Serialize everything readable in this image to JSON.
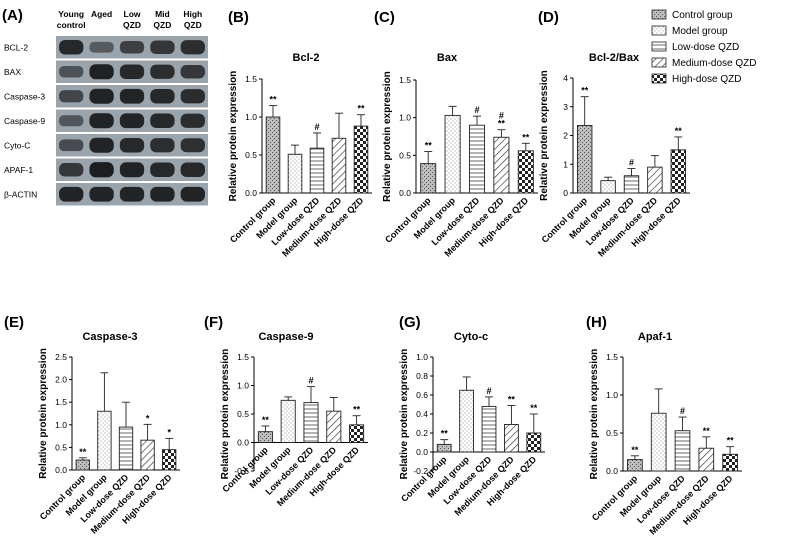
{
  "western_blot": {
    "panel_label": "(A)",
    "lanes": [
      "Young\ncontrol",
      "Aged",
      "Low\nQZD",
      "Mid\nQZD",
      "High\nQZD"
    ],
    "proteins": [
      "BCL-2",
      "BAX",
      "Caspase-3",
      "Caspase-9",
      "Cyto-C",
      "APAF-1",
      "β-ACTIN"
    ],
    "band_intensity": [
      [
        0.85,
        0.35,
        0.6,
        0.72,
        0.8
      ],
      [
        0.45,
        0.92,
        0.85,
        0.8,
        0.7
      ],
      [
        0.55,
        0.9,
        0.88,
        0.85,
        0.82
      ],
      [
        0.4,
        0.9,
        0.88,
        0.85,
        0.82
      ],
      [
        0.5,
        0.9,
        0.85,
        0.8,
        0.78
      ],
      [
        0.7,
        0.95,
        0.9,
        0.85,
        0.85
      ],
      [
        0.88,
        0.88,
        0.88,
        0.88,
        0.88
      ]
    ]
  },
  "legend": {
    "entries": [
      "Control group",
      "Model group",
      "Low-dose QZD",
      "Medium-dose QZD",
      "High-dose QZD"
    ]
  },
  "chart_data": [
    {
      "panel": "(B)",
      "type": "bar",
      "title": "Bcl-2",
      "ylabel": "Relative protein expression",
      "categories": [
        "Control group",
        "Model group",
        "Low-dose QZD",
        "Medium-dose QZD",
        "High-dose QZD"
      ],
      "values": [
        1.0,
        0.51,
        0.59,
        0.72,
        0.88
      ],
      "errors": [
        0.15,
        0.12,
        0.2,
        0.33,
        0.15
      ],
      "significance": [
        "**",
        "",
        "#",
        "",
        "**"
      ],
      "ylim": [
        0,
        1.5
      ],
      "yticks": [
        "0.0",
        "0.5",
        "1.0",
        "1.5"
      ]
    },
    {
      "panel": "(C)",
      "type": "bar",
      "title": "Bax",
      "ylabel": "Relative protein expression",
      "categories": [
        "Control group",
        "Model group",
        "Low-dose QZD",
        "Medium-dose QZD",
        "High-dose QZD"
      ],
      "values": [
        0.39,
        1.03,
        0.9,
        0.74,
        0.56
      ],
      "errors": [
        0.16,
        0.12,
        0.12,
        0.1,
        0.1
      ],
      "significance": [
        "**",
        "",
        "#",
        "#\n**",
        "**"
      ],
      "ylim": [
        0,
        1.5
      ],
      "yticks": [
        "0.0",
        "0.5",
        "1.0",
        "1.5"
      ]
    },
    {
      "panel": "(D)",
      "type": "bar",
      "title": "Bcl-2/Bax",
      "ylabel": "Relative protein expression",
      "categories": [
        "Control group",
        "Model group",
        "Low-dose QZD",
        "Medium-dose QZD",
        "High-dose QZD"
      ],
      "values": [
        2.35,
        0.43,
        0.6,
        0.9,
        1.5
      ],
      "errors": [
        1.0,
        0.12,
        0.25,
        0.4,
        0.45
      ],
      "significance": [
        "**",
        "",
        "#",
        "",
        "**"
      ],
      "ylim": [
        0,
        4
      ],
      "yticks": [
        "0",
        "1",
        "2",
        "3",
        "4"
      ]
    },
    {
      "panel": "(E)",
      "type": "bar",
      "title": "Caspase-3",
      "ylabel": "Relative protein expression",
      "categories": [
        "Control group",
        "Model group",
        "Low-dose QZD",
        "Medium-dose QZD",
        "High-dose QZD"
      ],
      "values": [
        0.22,
        1.3,
        0.95,
        0.66,
        0.45
      ],
      "errors": [
        0.05,
        0.85,
        0.55,
        0.35,
        0.25
      ],
      "significance": [
        "**",
        "",
        "",
        "*",
        "*"
      ],
      "ylim": [
        0,
        2.5
      ],
      "yticks": [
        "0.0",
        "0.5",
        "1.0",
        "1.5",
        "2.0",
        "2.5"
      ]
    },
    {
      "panel": "(F)",
      "type": "bar",
      "title": "Caspase-9",
      "ylabel": "Relative protein expression",
      "categories": [
        "Control group",
        "Model group",
        "Low-dose QZD",
        "Medium-dose QZD",
        "High-dose QZD"
      ],
      "values": [
        0.19,
        0.74,
        0.7,
        0.55,
        0.31
      ],
      "errors": [
        0.1,
        0.06,
        0.28,
        0.24,
        0.16
      ],
      "significance": [
        "**",
        "",
        "#",
        "",
        "**"
      ],
      "ylim": [
        -0.5,
        1.5
      ],
      "yticks": [
        "-0.5",
        "0.0",
        "0.5",
        "1.0",
        "1.5"
      ]
    },
    {
      "panel": "(G)",
      "type": "bar",
      "title": "Cyto-c",
      "ylabel": "Relative protein expression",
      "categories": [
        "Control group",
        "Model group",
        "Low-dose QZD",
        "Medium-dose QZD",
        "High-dose QZD"
      ],
      "values": [
        0.08,
        0.65,
        0.48,
        0.29,
        0.2
      ],
      "errors": [
        0.05,
        0.14,
        0.1,
        0.2,
        0.2
      ],
      "significance": [
        "**",
        "",
        "#",
        "**",
        "**"
      ],
      "ylim": [
        -0.2,
        1.0
      ],
      "yticks": [
        "-0.2",
        "0.0",
        "0.2",
        "0.4",
        "0.6",
        "0.8",
        "1.0"
      ]
    },
    {
      "panel": "(H)",
      "type": "bar",
      "title": "Apaf-1",
      "ylabel": "Relative protein expression",
      "categories": [
        "Control group",
        "Model group",
        "Low-dose QZD",
        "Medium-dose QZD",
        "High-dose QZD"
      ],
      "values": [
        0.15,
        0.76,
        0.53,
        0.3,
        0.22
      ],
      "errors": [
        0.05,
        0.32,
        0.18,
        0.15,
        0.1
      ],
      "significance": [
        "**",
        "",
        "#",
        "**",
        "**"
      ],
      "ylim": [
        0,
        1.5
      ],
      "yticks": [
        "0.0",
        "0.5",
        "1.0",
        "1.5"
      ]
    }
  ]
}
